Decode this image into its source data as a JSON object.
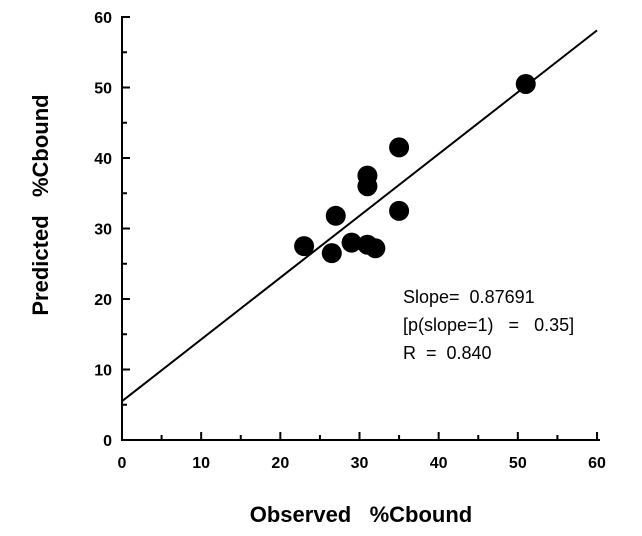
{
  "chart_data": {
    "type": "scatter",
    "xlabel": "Observed   %Cbound",
    "ylabel": "Predicted   %Cbound",
    "xlim": [
      0,
      60
    ],
    "ylim": [
      0,
      60
    ],
    "x_ticks": [
      0,
      10,
      20,
      30,
      40,
      50,
      60
    ],
    "y_ticks": [
      0,
      10,
      20,
      30,
      40,
      50,
      60
    ],
    "grid": false,
    "points": [
      {
        "x": 23.0,
        "y": 27.5
      },
      {
        "x": 26.5,
        "y": 26.5
      },
      {
        "x": 27.0,
        "y": 31.8
      },
      {
        "x": 29.0,
        "y": 28.0
      },
      {
        "x": 31.0,
        "y": 27.7
      },
      {
        "x": 31.0,
        "y": 36.0
      },
      {
        "x": 31.0,
        "y": 37.5
      },
      {
        "x": 32.0,
        "y": 27.2
      },
      {
        "x": 35.0,
        "y": 32.5
      },
      {
        "x": 35.0,
        "y": 41.5
      },
      {
        "x": 51.0,
        "y": 50.5
      }
    ],
    "fit_line": {
      "x": [
        0,
        60
      ],
      "y": [
        5.5,
        58.1
      ]
    },
    "annotation": {
      "line1": "Slope=  0.87691",
      "line2": "[p(slope=1)   =   0.35]",
      "line3": "R  =  0.840"
    }
  }
}
